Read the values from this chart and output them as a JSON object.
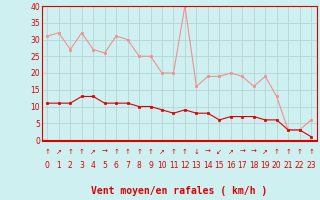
{
  "x": [
    0,
    1,
    2,
    3,
    4,
    5,
    6,
    7,
    8,
    9,
    10,
    11,
    12,
    13,
    14,
    15,
    16,
    17,
    18,
    19,
    20,
    21,
    22,
    23
  ],
  "rafales": [
    31,
    32,
    27,
    32,
    27,
    26,
    31,
    30,
    25,
    25,
    20,
    20,
    40,
    16,
    19,
    19,
    20,
    19,
    16,
    19,
    13,
    3,
    3,
    6
  ],
  "moyen": [
    11,
    11,
    11,
    13,
    13,
    11,
    11,
    11,
    10,
    10,
    9,
    8,
    9,
    8,
    8,
    6,
    7,
    7,
    7,
    6,
    6,
    3,
    3,
    1
  ],
  "wind_arrows": [
    "↑",
    "↗",
    "↑",
    "↑",
    "↗",
    "→",
    "↑",
    "↑",
    "↑",
    "↑",
    "↗",
    "↑",
    "↑",
    "↓",
    "→",
    "↙",
    "↗",
    "→",
    "→",
    "↗",
    "↑",
    "↑",
    "↑",
    "↑"
  ],
  "bg_color": "#cff0f0",
  "grid_color": "#b0d0d0",
  "line_color_rafales": "#f09090",
  "line_color_moyen": "#dd0000",
  "xlabel": "Vent moyen/en rafales ( km/h )",
  "ylim": [
    0,
    40
  ],
  "xlim_min": -0.5,
  "xlim_max": 23.5,
  "yticks": [
    0,
    5,
    10,
    15,
    20,
    25,
    30,
    35,
    40
  ],
  "xticks": [
    0,
    1,
    2,
    3,
    4,
    5,
    6,
    7,
    8,
    9,
    10,
    11,
    12,
    13,
    14,
    15,
    16,
    17,
    18,
    19,
    20,
    21,
    22,
    23
  ],
  "tick_fontsize": 5.5,
  "xlabel_fontsize": 7,
  "arrow_fontsize": 5
}
